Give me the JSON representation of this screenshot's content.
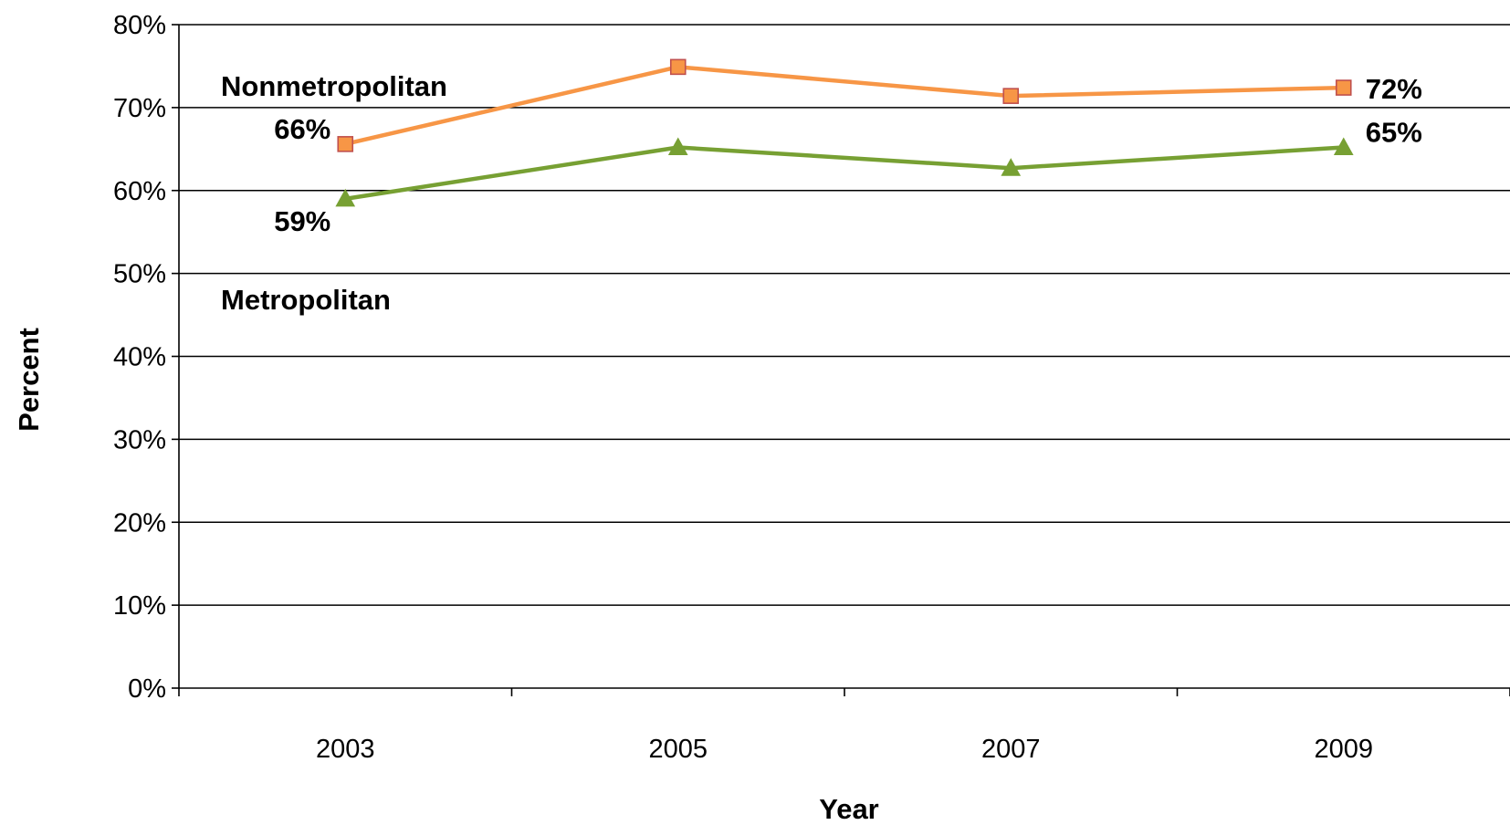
{
  "chart_data": {
    "type": "line",
    "xlabel": "Year",
    "ylabel": "Percent",
    "categories": [
      "2003",
      "2005",
      "2007",
      "2009"
    ],
    "ylim": [
      0,
      80
    ],
    "yticks": [
      "0%",
      "10%",
      "20%",
      "30%",
      "40%",
      "50%",
      "60%",
      "70%",
      "80%"
    ],
    "grid": true,
    "legend": "none",
    "series": [
      {
        "name": "Nonmetropolitan",
        "values": [
          65.6,
          74.9,
          71.4,
          72.4
        ],
        "color": "#F79646",
        "marker": "square",
        "marker_fill": "#F79646",
        "marker_edge": "#C0504D",
        "data_labels": {
          "0": "66%",
          "3": "72%"
        }
      },
      {
        "name": "Metropolitan",
        "values": [
          59.0,
          65.2,
          62.7,
          65.2
        ],
        "color": "#77A033",
        "marker": "triangle",
        "marker_fill": "#77A033",
        "marker_edge": "#77A033",
        "data_labels": {
          "0": "59%",
          "3": "65%"
        }
      }
    ]
  }
}
